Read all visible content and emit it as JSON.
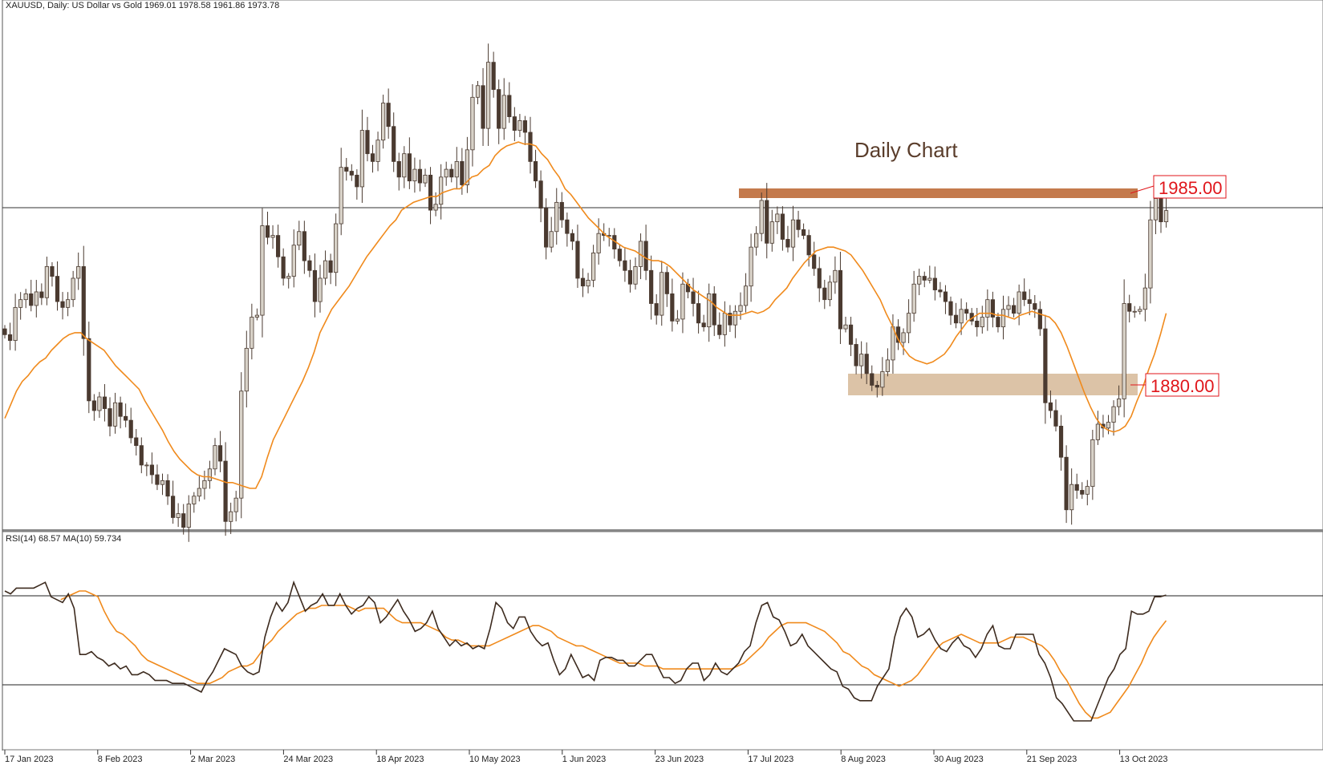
{
  "header": {
    "symbol_line": "XAUUSD, Daily:  US Dollar vs Gold  1969.01 1978.58 1961.86 1973.78"
  },
  "annotation": {
    "title": "Daily Chart"
  },
  "levels": {
    "resistance_label": "1985.00",
    "support_label": "1880.00"
  },
  "rsi_panel": {
    "header": "RSI(14) 68.57 MA(10) 59.734"
  },
  "colors": {
    "candle_bull": "#d8d2c8",
    "candle_bear": "#4a3a30",
    "ma_line": "#f08a1c",
    "rsi_line": "#3d2b1f",
    "resistance_zone": "#c47a4d",
    "support_zone": "#dcc3a7",
    "label_text": "#e0161b"
  },
  "chart_data": [
    {
      "type": "candlestick",
      "title": "Daily Chart",
      "symbol": "XAUUSD",
      "timeframe": "Daily",
      "x_tick_labels": [
        "17 Jan 2023",
        "8 Feb 2023",
        "2 Mar 2023",
        "24 Mar 2023",
        "18 Apr 2023",
        "10 May 2023",
        "1 Jun 2023",
        "23 Jun 2023",
        "17 Jul 2023",
        "8 Aug 2023",
        "30 Aug 2023",
        "21 Sep 2023",
        "13 Oct 2023"
      ],
      "ylim": [
        1810,
        2082
      ],
      "last_bar": {
        "open": 1969.01,
        "high": 1978.58,
        "low": 1961.86,
        "close": 1973.78
      },
      "horizontal_line": 1973.78,
      "zones": [
        {
          "label": "1985.00",
          "low": 1980,
          "high": 1985
        },
        {
          "label": "1880.00",
          "low": 1870,
          "high": 1881
        }
      ],
      "series": [
        {
          "name": "close",
          "values": [
            1910,
            1907,
            1924,
            1928,
            1931,
            1925,
            1932,
            1929,
            1945,
            1940,
            1927,
            1924,
            1928,
            1939,
            1945,
            1908,
            1876,
            1871,
            1878,
            1872,
            1863,
            1875,
            1868,
            1866,
            1857,
            1853,
            1843,
            1843,
            1838,
            1833,
            1835,
            1827,
            1816,
            1818,
            1811,
            1823,
            1827,
            1831,
            1835,
            1841,
            1853,
            1845,
            1814,
            1819,
            1826,
            1881,
            1903,
            1919,
            1920,
            1966,
            1960,
            1961,
            1950,
            1939,
            1940,
            1956,
            1963,
            1948,
            1943,
            1927,
            1939,
            1948,
            1942,
            1967,
            1996,
            1994,
            1992,
            1986,
            2015,
            2003,
            1999,
            2010,
            2029,
            2017,
            1999,
            1991,
            2003,
            1989,
            1995,
            1988,
            1992,
            1974,
            1977,
            1991,
            1995,
            1991,
            1999,
            1987,
            2005,
            2032,
            2038,
            2016,
            2050,
            2036,
            2016,
            2033,
            2022,
            2015,
            2020,
            2014,
            1999,
            1989,
            1975,
            1955,
            1963,
            1978,
            1969,
            1962,
            1958,
            1939,
            1935,
            1938,
            1952,
            1962,
            1961,
            1961,
            1954,
            1948,
            1943,
            1936,
            1945,
            1958,
            1943,
            1926,
            1920,
            1942,
            1931,
            1917,
            1918,
            1936,
            1932,
            1926,
            1916,
            1914,
            1931,
            1915,
            1910,
            1921,
            1915,
            1922,
            1925,
            1935,
            1955,
            1962,
            1979,
            1957,
            1968,
            1972,
            1959,
            1955,
            1969,
            1964,
            1961,
            1951,
            1944,
            1934,
            1928,
            1937,
            1943,
            1913,
            1915,
            1905,
            1894,
            1900,
            1890,
            1884,
            1883,
            1891,
            1897,
            1914,
            1906,
            1911,
            1921,
            1936,
            1940,
            1938,
            1939,
            1933,
            1932,
            1927,
            1920,
            1916,
            1923,
            1921,
            1917,
            1914,
            1919,
            1928,
            1919,
            1914,
            1923,
            1925,
            1921,
            1932,
            1928,
            1926,
            1923,
            1913,
            1875,
            1871,
            1863,
            1847,
            1820,
            1833,
            1830,
            1828,
            1832,
            1856,
            1864,
            1862,
            1865,
            1873,
            1877,
            1926,
            1922,
            1922,
            1923,
            1934,
            1969,
            1980,
            1968,
            1973.78
          ]
        },
        {
          "name": "MA",
          "values": [
            1867,
            1874,
            1881,
            1886,
            1889,
            1893,
            1896,
            1898,
            1902,
            1905,
            1908,
            1910,
            1911,
            1911,
            1908,
            1906,
            1904,
            1902,
            1898,
            1894,
            1891,
            1888,
            1885,
            1882,
            1876,
            1871,
            1866,
            1861,
            1855,
            1850,
            1846,
            1843,
            1840,
            1838,
            1837,
            1837,
            1836,
            1835,
            1834,
            1834,
            1833,
            1832,
            1831,
            1831,
            1837,
            1847,
            1856,
            1862,
            1868,
            1874,
            1880,
            1886,
            1893,
            1901,
            1911,
            1917,
            1923,
            1927,
            1931,
            1935,
            1940,
            1945,
            1950,
            1954,
            1958,
            1962,
            1966,
            1969,
            1974,
            1976,
            1978,
            1979,
            1980,
            1981,
            1981,
            1983,
            1984,
            1985,
            1985,
            1988,
            1991,
            1992,
            1995,
            1997,
            2002,
            2005,
            2007,
            2008,
            2009,
            2008,
            2008,
            2007,
            2003,
            2000,
            1995,
            1991,
            1985,
            1982,
            1978,
            1974,
            1970,
            1967,
            1964,
            1961,
            1959,
            1957,
            1955,
            1954,
            1953,
            1951,
            1949,
            1948,
            1948,
            1947,
            1945,
            1942,
            1939,
            1936,
            1933,
            1931,
            1929,
            1927,
            1924,
            1922,
            1920,
            1920,
            1920,
            1921,
            1922,
            1921,
            1922,
            1924,
            1928,
            1931,
            1934,
            1939,
            1943,
            1947,
            1950,
            1953,
            1954,
            1955,
            1955,
            1954,
            1953,
            1951,
            1947,
            1943,
            1938,
            1933,
            1928,
            1921,
            1915,
            1908,
            1903,
            1899,
            1897,
            1896,
            1895,
            1896,
            1898,
            1900,
            1904,
            1909,
            1913,
            1917,
            1919,
            1921,
            1921,
            1921,
            1920,
            1920,
            1919,
            1918,
            1920,
            1921,
            1922,
            1921,
            1920,
            1919,
            1916,
            1911,
            1904,
            1896,
            1888,
            1880,
            1873,
            1867,
            1863,
            1861,
            1860,
            1861,
            1863,
            1868,
            1876,
            1883,
            1892,
            1900,
            1910,
            1921
          ]
        }
      ]
    },
    {
      "type": "line",
      "title": "RSI(14) 68.57 MA(10) 59.734",
      "ylim": [
        15,
        90
      ],
      "levels": [
        70,
        30
      ],
      "series": [
        {
          "name": "RSI",
          "values": [
            70,
            69,
            71,
            71,
            71,
            71,
            72,
            73,
            68,
            67,
            66,
            69,
            64,
            48,
            48,
            49,
            47,
            46,
            44,
            45,
            43,
            44,
            41,
            41,
            42,
            41,
            39,
            39,
            39,
            38,
            38,
            38,
            37,
            36,
            35,
            39,
            42,
            46,
            50,
            49,
            48,
            44,
            42,
            41,
            42,
            54,
            61,
            66,
            63,
            66,
            73,
            68,
            63,
            65,
            66,
            69,
            65,
            65,
            69,
            65,
            62,
            64,
            65,
            68,
            66,
            59,
            61,
            64,
            67,
            63,
            60,
            56,
            57,
            59,
            63,
            57,
            54,
            51,
            53,
            51,
            52,
            50,
            51,
            50,
            57,
            66,
            64,
            59,
            57,
            61,
            61,
            56,
            53,
            51,
            52,
            46,
            41,
            43,
            48,
            44,
            40,
            41,
            39,
            46,
            47,
            47,
            46,
            46,
            44,
            44,
            46,
            48,
            48,
            44,
            40,
            40,
            38,
            39,
            43,
            45,
            45,
            39,
            41,
            45,
            42,
            41,
            43,
            45,
            49,
            51,
            59,
            65,
            66,
            61,
            60,
            56,
            51,
            52,
            55,
            51,
            49,
            47,
            45,
            43,
            42,
            37,
            36,
            33,
            32,
            32,
            32,
            37,
            40,
            43,
            54,
            61,
            64,
            61,
            54,
            55,
            57,
            53,
            50,
            49,
            52,
            54,
            51,
            50,
            47,
            50,
            55,
            58,
            51,
            50,
            50,
            55,
            55,
            55,
            55,
            48,
            45,
            40,
            33,
            31,
            28,
            25,
            25,
            25,
            25,
            30,
            35,
            40,
            43,
            48,
            50,
            63,
            62,
            62,
            63,
            68,
            68,
            68.57
          ]
        },
        {
          "name": "MA",
          "values": [
            67,
            68,
            69,
            70,
            70,
            69,
            68,
            63,
            59,
            56,
            55,
            53,
            51,
            48,
            46,
            45,
            44,
            43,
            42,
            41,
            40,
            39,
            38,
            38,
            38,
            39,
            40,
            42,
            43,
            44,
            44,
            45,
            48,
            51,
            53,
            56,
            58,
            60,
            62,
            63,
            64,
            64,
            65,
            65,
            65,
            65,
            65,
            64,
            63,
            64,
            64,
            64,
            64,
            62,
            60,
            59,
            59,
            59,
            59,
            58,
            57,
            56,
            54,
            53,
            53,
            52,
            51,
            51,
            51,
            51,
            52,
            53,
            54,
            55,
            56,
            57,
            58,
            58,
            57,
            56,
            54,
            53,
            52,
            51,
            51,
            50,
            49,
            48,
            47,
            46,
            45,
            45,
            45,
            45,
            44,
            44,
            44,
            43,
            43,
            43,
            43,
            43,
            43,
            43,
            43,
            43,
            43,
            43,
            43,
            44,
            45,
            47,
            49,
            51,
            54,
            56,
            58,
            59,
            59,
            59,
            59,
            58,
            57,
            56,
            54,
            52,
            49,
            48,
            46,
            44,
            43,
            41,
            40,
            39,
            38,
            37,
            38,
            39,
            41,
            44,
            47,
            50,
            52,
            53,
            54,
            55,
            54,
            53,
            52,
            52,
            52,
            52,
            53,
            54,
            54,
            54,
            53,
            52,
            51,
            49,
            46,
            42,
            39,
            35,
            31,
            28,
            26,
            26,
            27,
            28,
            31,
            34,
            37,
            41,
            45,
            50,
            54,
            57,
            59.734
          ]
        }
      ]
    }
  ]
}
